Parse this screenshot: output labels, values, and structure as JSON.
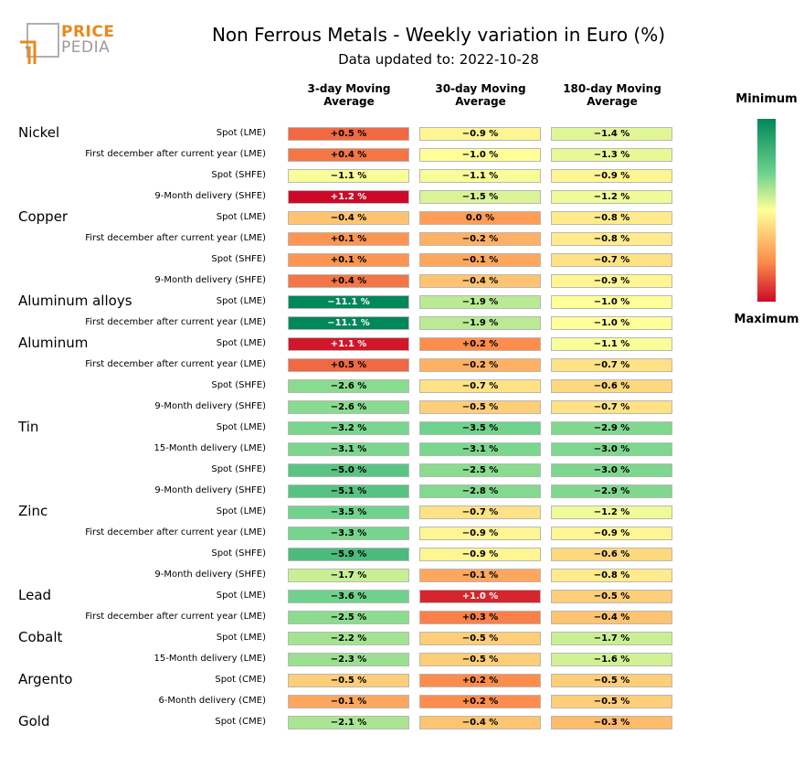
{
  "logo": {
    "line1": "PRICE",
    "line2": "PEDIA"
  },
  "header": {
    "title": "Non Ferrous Metals - Weekly variation in Euro (%)",
    "subtitle": "Data updated to: 2022-10-28"
  },
  "legend": {
    "min_label": "Minimum",
    "max_label": "Maximum"
  },
  "chart_data": {
    "type": "heatmap",
    "columns": [
      {
        "line1": "3-day Moving",
        "line2": "Average"
      },
      {
        "line1": "30-day Moving",
        "line2": "Average"
      },
      {
        "line1": "180-day Moving",
        "line2": "Average"
      }
    ],
    "color_scale": {
      "low": "#00875a",
      "mid": "#ffff99",
      "high": "#cc0a27"
    },
    "rows": [
      {
        "group": "Nickel",
        "label": "Spot (LME)",
        "cells": [
          "+0.5 %",
          "−0.9 %",
          "−1.4 %"
        ],
        "values": [
          0.5,
          -0.9,
          -1.4
        ]
      },
      {
        "group": "",
        "label": "First december after current year (LME)",
        "cells": [
          "+0.4 %",
          "−1.0 %",
          "−1.3 %"
        ],
        "values": [
          0.4,
          -1.0,
          -1.3
        ]
      },
      {
        "group": "",
        "label": "Spot (SHFE)",
        "cells": [
          "−1.1 %",
          "−1.1 %",
          "−0.9 %"
        ],
        "values": [
          -1.1,
          -1.1,
          -0.9
        ]
      },
      {
        "group": "",
        "label": "9-Month delivery (SHFE)",
        "cells": [
          "+1.2 %",
          "−1.5 %",
          "−1.2 %"
        ],
        "values": [
          1.2,
          -1.5,
          -1.2
        ]
      },
      {
        "group": "Copper",
        "label": "Spot (LME)",
        "cells": [
          "−0.4 %",
          "0.0 %",
          "−0.8 %"
        ],
        "values": [
          -0.4,
          0.0,
          -0.8
        ]
      },
      {
        "group": "",
        "label": "First december after current year (LME)",
        "cells": [
          "+0.1 %",
          "−0.2 %",
          "−0.8 %"
        ],
        "values": [
          0.1,
          -0.2,
          -0.8
        ]
      },
      {
        "group": "",
        "label": "Spot (SHFE)",
        "cells": [
          "+0.1 %",
          "−0.1 %",
          "−0.7 %"
        ],
        "values": [
          0.1,
          -0.1,
          -0.7
        ]
      },
      {
        "group": "",
        "label": "9-Month delivery (SHFE)",
        "cells": [
          "+0.4 %",
          "−0.4 %",
          "−0.9 %"
        ],
        "values": [
          0.4,
          -0.4,
          -0.9
        ]
      },
      {
        "group": "Aluminum alloys",
        "label": "Spot (LME)",
        "cells": [
          "−11.1 %",
          "−1.9 %",
          "−1.0 %"
        ],
        "values": [
          -11.1,
          -1.9,
          -1.0
        ]
      },
      {
        "group": "",
        "label": "First december after current year (LME)",
        "cells": [
          "−11.1 %",
          "−1.9 %",
          "−1.0 %"
        ],
        "values": [
          -11.1,
          -1.9,
          -1.0
        ]
      },
      {
        "group": "Aluminum",
        "label": "Spot (LME)",
        "cells": [
          "+1.1 %",
          "+0.2 %",
          "−1.1 %"
        ],
        "values": [
          1.1,
          0.2,
          -1.1
        ]
      },
      {
        "group": "",
        "label": "First december after current year (LME)",
        "cells": [
          "+0.5 %",
          "−0.2 %",
          "−0.7 %"
        ],
        "values": [
          0.5,
          -0.2,
          -0.7
        ]
      },
      {
        "group": "",
        "label": "Spot (SHFE)",
        "cells": [
          "−2.6 %",
          "−0.7 %",
          "−0.6 %"
        ],
        "values": [
          -2.6,
          -0.7,
          -0.6
        ]
      },
      {
        "group": "",
        "label": "9-Month delivery (SHFE)",
        "cells": [
          "−2.6 %",
          "−0.5 %",
          "−0.7 %"
        ],
        "values": [
          -2.6,
          -0.5,
          -0.7
        ]
      },
      {
        "group": "Tin",
        "label": "Spot (LME)",
        "cells": [
          "−3.2 %",
          "−3.5 %",
          "−2.9 %"
        ],
        "values": [
          -3.2,
          -3.5,
          -2.9
        ]
      },
      {
        "group": "",
        "label": "15-Month delivery (LME)",
        "cells": [
          "−3.1 %",
          "−3.1 %",
          "−3.0 %"
        ],
        "values": [
          -3.1,
          -3.1,
          -3.0
        ]
      },
      {
        "group": "",
        "label": "Spot (SHFE)",
        "cells": [
          "−5.0 %",
          "−2.5 %",
          "−3.0 %"
        ],
        "values": [
          -5.0,
          -2.5,
          -3.0
        ]
      },
      {
        "group": "",
        "label": "9-Month delivery (SHFE)",
        "cells": [
          "−5.1 %",
          "−2.8 %",
          "−2.9 %"
        ],
        "values": [
          -5.1,
          -2.8,
          -2.9
        ]
      },
      {
        "group": "Zinc",
        "label": "Spot (LME)",
        "cells": [
          "−3.5 %",
          "−0.7 %",
          "−1.2 %"
        ],
        "values": [
          -3.5,
          -0.7,
          -1.2
        ]
      },
      {
        "group": "",
        "label": "First december after current year (LME)",
        "cells": [
          "−3.3 %",
          "−0.9 %",
          "−0.9 %"
        ],
        "values": [
          -3.3,
          -0.9,
          -0.9
        ]
      },
      {
        "group": "",
        "label": "Spot (SHFE)",
        "cells": [
          "−5.9 %",
          "−0.9 %",
          "−0.6 %"
        ],
        "values": [
          -5.9,
          -0.9,
          -0.6
        ]
      },
      {
        "group": "",
        "label": "9-Month delivery (SHFE)",
        "cells": [
          "−1.7 %",
          "−0.1 %",
          "−0.8 %"
        ],
        "values": [
          -1.7,
          -0.1,
          -0.8
        ]
      },
      {
        "group": "Lead",
        "label": "Spot (LME)",
        "cells": [
          "−3.6 %",
          "+1.0 %",
          "−0.5 %"
        ],
        "values": [
          -3.6,
          1.0,
          -0.5
        ]
      },
      {
        "group": "",
        "label": "First december after current year (LME)",
        "cells": [
          "−2.5 %",
          "+0.3 %",
          "−0.4 %"
        ],
        "values": [
          -2.5,
          0.3,
          -0.4
        ]
      },
      {
        "group": "Cobalt",
        "label": "Spot (LME)",
        "cells": [
          "−2.2 %",
          "−0.5 %",
          "−1.7 %"
        ],
        "values": [
          -2.2,
          -0.5,
          -1.7
        ]
      },
      {
        "group": "",
        "label": "15-Month delivery (LME)",
        "cells": [
          "−2.3 %",
          "−0.5 %",
          "−1.6 %"
        ],
        "values": [
          -2.3,
          -0.5,
          -1.6
        ]
      },
      {
        "group": "Argento",
        "label": "Spot (CME)",
        "cells": [
          "−0.5 %",
          "+0.2 %",
          "−0.5 %"
        ],
        "values": [
          -0.5,
          0.2,
          -0.5
        ]
      },
      {
        "group": "",
        "label": "6-Month delivery (CME)",
        "cells": [
          "−0.1 %",
          "+0.2 %",
          "−0.5 %"
        ],
        "values": [
          -0.1,
          0.2,
          -0.5
        ]
      },
      {
        "group": "Gold",
        "label": "Spot (CME)",
        "cells": [
          "−2.1 %",
          "−0.4 %",
          "−0.3 %"
        ],
        "values": [
          -2.1,
          -0.4,
          -0.3
        ]
      }
    ]
  }
}
